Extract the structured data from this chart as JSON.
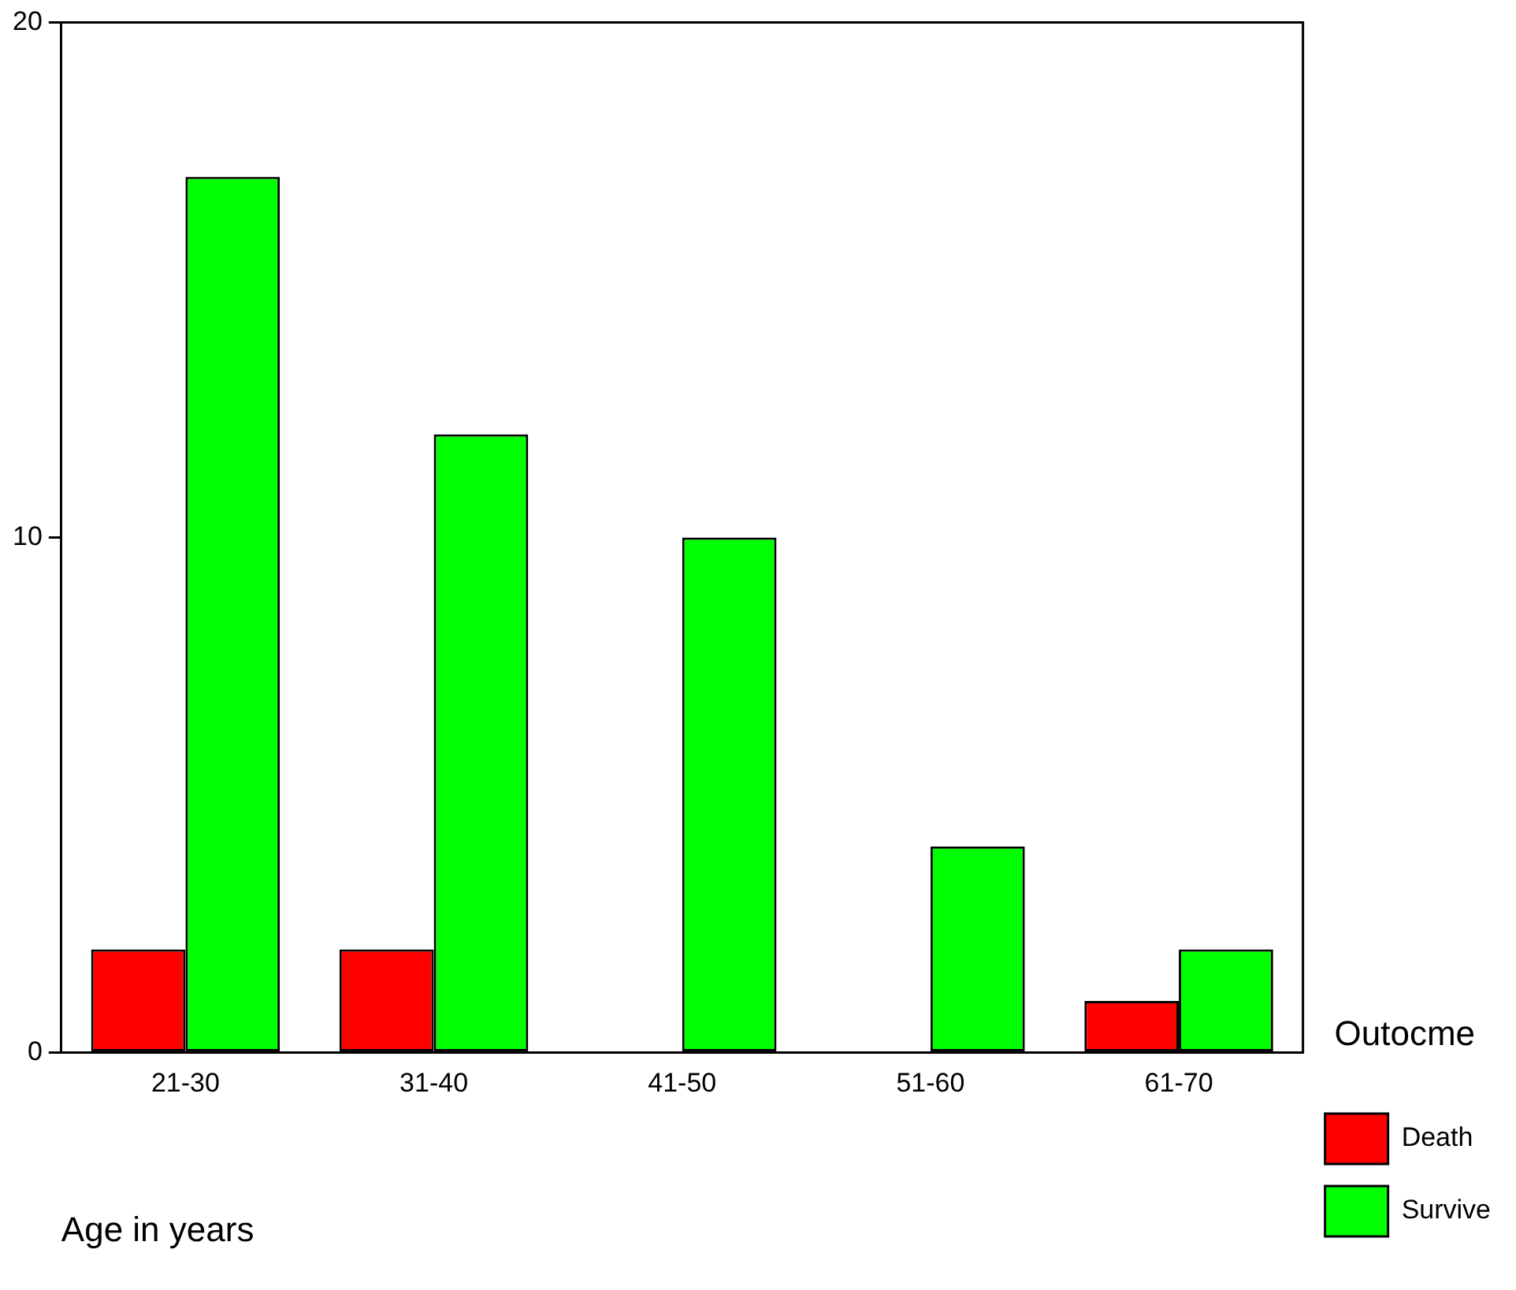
{
  "chart_data": {
    "type": "bar",
    "xlabel": "Age in years",
    "legend_title": "Outocme",
    "categories": [
      "21-30",
      "31-40",
      "41-50",
      "51-60",
      "61-70"
    ],
    "series": [
      {
        "name": "Death",
        "color": "#ff0000",
        "values": [
          2,
          2,
          0,
          0,
          1
        ]
      },
      {
        "name": "Survive",
        "color": "#00ff00",
        "values": [
          17,
          12,
          10,
          4,
          2
        ]
      }
    ],
    "ylim": [
      0,
      20
    ],
    "yticks": [
      0,
      10,
      20
    ],
    "grid": false,
    "legend": "bottom right"
  }
}
